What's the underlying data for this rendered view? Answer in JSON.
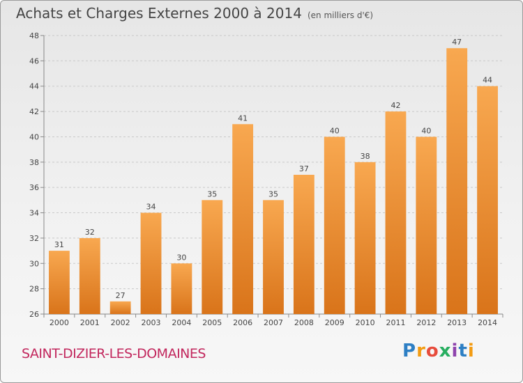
{
  "chart_data": {
    "type": "bar",
    "title": "Achats et Charges Externes 2000 à 2014",
    "subtitle": "(en milliers d'€)",
    "categories": [
      "2000",
      "2001",
      "2002",
      "2003",
      "2004",
      "2005",
      "2006",
      "2007",
      "2008",
      "2009",
      "2010",
      "2011",
      "2012",
      "2013",
      "2014"
    ],
    "values": [
      31,
      32,
      27,
      34,
      30,
      35,
      41,
      35,
      37,
      40,
      38,
      42,
      40,
      47,
      44
    ],
    "ylim": [
      26,
      48
    ],
    "yticks": [
      26,
      28,
      30,
      32,
      34,
      36,
      38,
      40,
      42,
      44,
      46,
      48
    ],
    "grid": true,
    "bar_color": "#f0932e"
  },
  "footer": {
    "place": "SAINT-DIZIER-LES-DOMAINES"
  },
  "logo": {
    "letters": [
      "P",
      "r",
      "o",
      "x",
      "i",
      "t",
      "i"
    ],
    "colors": [
      "#2d7fc4",
      "#f39c12",
      "#e74c3c",
      "#27ae60",
      "#8e44ad",
      "#2d7fc4",
      "#f39c12"
    ]
  }
}
